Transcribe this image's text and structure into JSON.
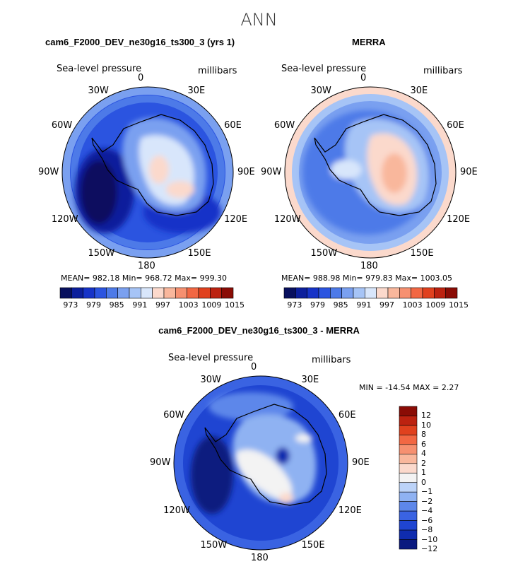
{
  "title": "ANN",
  "panels": [
    {
      "heading": "cam6_F2000_DEV_ne30g16_ts300_3 (yrs 1)",
      "field": "Sea-level pressure",
      "units": "millibars",
      "stats": "MEAN=  982.18   Min=  968.72   Max=  999.30",
      "colorbar_ticks": [
        "973",
        "979",
        "985",
        "991",
        "997",
        "1003",
        "1009",
        "1015"
      ],
      "lon_labels": [
        "0",
        "30E",
        "60E",
        "90E",
        "120E",
        "150E",
        "180",
        "150W",
        "120W",
        "90W",
        "60W",
        "30W"
      ]
    },
    {
      "heading": "MERRA",
      "field": "Sea-level pressure",
      "units": "millibars",
      "stats": "MEAN=  988.98   Min=  979.83   Max=  1003.05",
      "colorbar_ticks": [
        "973",
        "979",
        "985",
        "991",
        "997",
        "1003",
        "1009",
        "1015"
      ],
      "lon_labels": [
        "0",
        "30E",
        "60E",
        "90E",
        "120E",
        "150E",
        "180",
        "150W",
        "120W",
        "90W",
        "60W",
        "30W"
      ]
    },
    {
      "heading": "cam6_F2000_DEV_ne30g16_ts300_3 - MERRA",
      "field": "Sea-level pressure",
      "units": "millibars",
      "stats": "MIN = -14.54  MAX =    2.27",
      "colorbar_ticks": [
        "12",
        "10",
        "8",
        "6",
        "4",
        "2",
        "1",
        "0",
        "−1",
        "−2",
        "−4",
        "−6",
        "−8",
        "−10",
        "−12"
      ],
      "lon_labels": [
        "0",
        "30E",
        "60E",
        "90E",
        "120E",
        "150E",
        "180",
        "150W",
        "120W",
        "90W",
        "60W",
        "30W"
      ]
    }
  ],
  "colors": {
    "abs_scale": [
      "#08105e",
      "#0c1f9c",
      "#1633c8",
      "#2b54e0",
      "#4d7ae8",
      "#7aa0f0",
      "#a6c4f6",
      "#d8e6fb",
      "#fbd9cc",
      "#f9b79c",
      "#f69070",
      "#f26743",
      "#e0411e",
      "#bc2210",
      "#8a0c05"
    ],
    "diff_scale": [
      "#8a0c05",
      "#bc2210",
      "#e0411e",
      "#f26743",
      "#f69070",
      "#f9b79c",
      "#fbd9cc",
      "#f3f3f3",
      "#bcd3f8",
      "#8fb2f2",
      "#5d87ea",
      "#3a63e2",
      "#1f45d2",
      "#0f2cae",
      "#0a1a7f"
    ]
  }
}
